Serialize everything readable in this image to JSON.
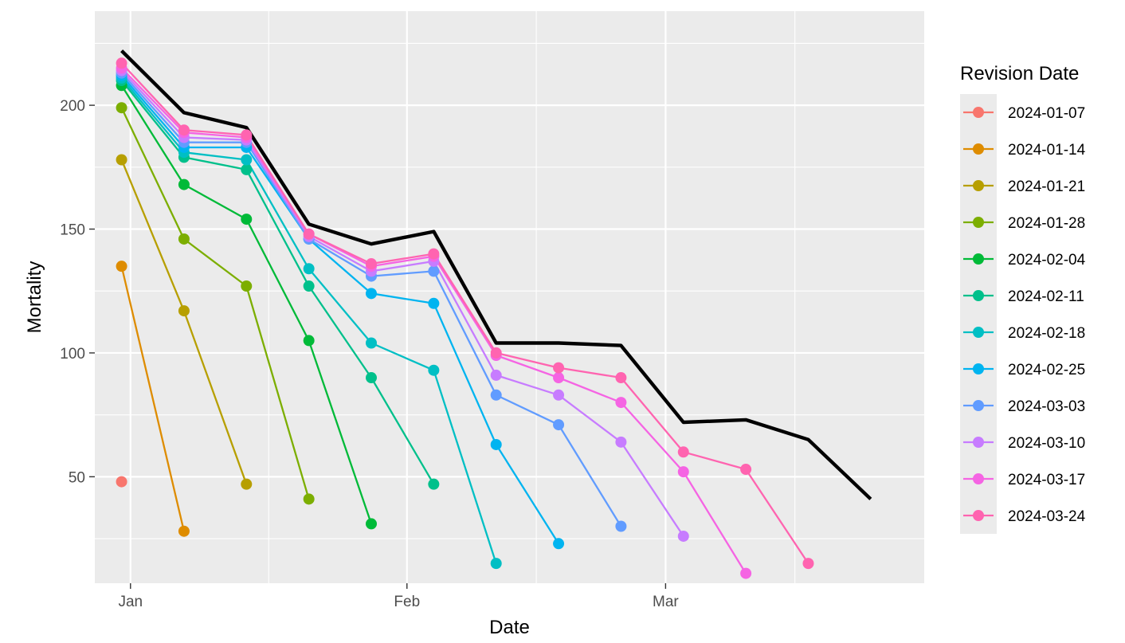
{
  "chart_data": {
    "type": "line",
    "title": "",
    "xlabel": "Date",
    "ylabel": "Mortality",
    "x_axis_type": "date",
    "xlim": [
      "2023-12-28",
      "2024-03-30"
    ],
    "ylim": [
      7,
      238
    ],
    "x_ticks": [
      {
        "date": "2024-01-01",
        "label": "Jan"
      },
      {
        "date": "2024-02-01",
        "label": "Feb"
      },
      {
        "date": "2024-03-01",
        "label": "Mar"
      }
    ],
    "y_ticks": [
      50,
      100,
      150,
      200
    ],
    "grid": true,
    "legend": {
      "title": "Revision Date",
      "position": "right"
    },
    "final_series": {
      "color": "#000000",
      "x": [
        "2023-12-31",
        "2024-01-07",
        "2024-01-14",
        "2024-01-21",
        "2024-01-28",
        "2024-02-04",
        "2024-02-11",
        "2024-02-18",
        "2024-02-25",
        "2024-03-03",
        "2024-03-10",
        "2024-03-17",
        "2024-03-24"
      ],
      "y": [
        222,
        197,
        191,
        152,
        144,
        149,
        104,
        104,
        103,
        72,
        73,
        65,
        41
      ]
    },
    "series": [
      {
        "name": "2024-01-07",
        "color": "#F8766D",
        "x": [
          "2023-12-31"
        ],
        "y": [
          48
        ]
      },
      {
        "name": "2024-01-14",
        "color": "#DE8C00",
        "x": [
          "2023-12-31",
          "2024-01-07"
        ],
        "y": [
          135,
          28
        ]
      },
      {
        "name": "2024-01-21",
        "color": "#B79F00",
        "x": [
          "2023-12-31",
          "2024-01-07",
          "2024-01-14"
        ],
        "y": [
          178,
          117,
          47
        ]
      },
      {
        "name": "2024-01-28",
        "color": "#7CAE00",
        "x": [
          "2023-12-31",
          "2024-01-07",
          "2024-01-14",
          "2024-01-21"
        ],
        "y": [
          199,
          146,
          127,
          41
        ]
      },
      {
        "name": "2024-02-04",
        "color": "#00BA38",
        "x": [
          "2023-12-31",
          "2024-01-07",
          "2024-01-14",
          "2024-01-21",
          "2024-01-28"
        ],
        "y": [
          208,
          168,
          154,
          105,
          31
        ]
      },
      {
        "name": "2024-02-11",
        "color": "#00C08B",
        "x": [
          "2023-12-31",
          "2024-01-07",
          "2024-01-14",
          "2024-01-21",
          "2024-01-28",
          "2024-02-04"
        ],
        "y": [
          210,
          179,
          174,
          127,
          90,
          47
        ]
      },
      {
        "name": "2024-02-18",
        "color": "#00BFC4",
        "x": [
          "2023-12-31",
          "2024-01-07",
          "2024-01-14",
          "2024-01-21",
          "2024-01-28",
          "2024-02-04",
          "2024-02-11"
        ],
        "y": [
          211,
          181,
          178,
          134,
          104,
          93,
          15
        ]
      },
      {
        "name": "2024-02-25",
        "color": "#00B4F0",
        "x": [
          "2023-12-31",
          "2024-01-07",
          "2024-01-14",
          "2024-01-21",
          "2024-01-28",
          "2024-02-04",
          "2024-02-11",
          "2024-02-18"
        ],
        "y": [
          212,
          183,
          183,
          146,
          124,
          120,
          63,
          23
        ]
      },
      {
        "name": "2024-03-03",
        "color": "#619CFF",
        "x": [
          "2023-12-31",
          "2024-01-07",
          "2024-01-14",
          "2024-01-21",
          "2024-01-28",
          "2024-02-04",
          "2024-02-11",
          "2024-02-18",
          "2024-02-25"
        ],
        "y": [
          213,
          185,
          185,
          146,
          131,
          133,
          83,
          71,
          30
        ]
      },
      {
        "name": "2024-03-10",
        "color": "#C77CFF",
        "x": [
          "2023-12-31",
          "2024-01-07",
          "2024-01-14",
          "2024-01-21",
          "2024-01-28",
          "2024-02-04",
          "2024-02-11",
          "2024-02-18",
          "2024-02-25",
          "2024-03-03"
        ],
        "y": [
          214,
          187,
          186,
          147,
          133,
          137,
          91,
          83,
          64,
          26
        ]
      },
      {
        "name": "2024-03-17",
        "color": "#F564E3",
        "x": [
          "2023-12-31",
          "2024-01-07",
          "2024-01-14",
          "2024-01-21",
          "2024-01-28",
          "2024-02-04",
          "2024-02-11",
          "2024-02-18",
          "2024-02-25",
          "2024-03-03",
          "2024-03-10"
        ],
        "y": [
          215,
          189,
          187,
          148,
          135,
          139,
          99,
          90,
          80,
          52,
          11
        ]
      },
      {
        "name": "2024-03-24",
        "color": "#FF64B0",
        "x": [
          "2023-12-31",
          "2024-01-07",
          "2024-01-14",
          "2024-01-21",
          "2024-01-28",
          "2024-02-04",
          "2024-02-11",
          "2024-02-18",
          "2024-02-25",
          "2024-03-03",
          "2024-03-10",
          "2024-03-17"
        ],
        "y": [
          217,
          190,
          188,
          148,
          136,
          140,
          100,
          94,
          90,
          60,
          53,
          15
        ]
      }
    ]
  }
}
